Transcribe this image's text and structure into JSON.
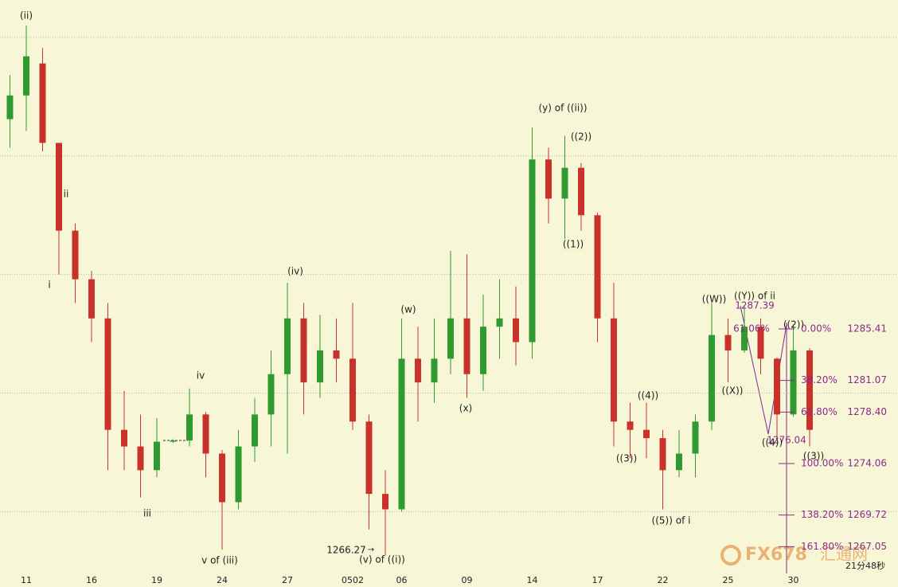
{
  "chart_data": {
    "type": "candlestick",
    "categories": [
      null,
      "11",
      null,
      null,
      null,
      "16",
      null,
      null,
      null,
      "19",
      null,
      null,
      null,
      "24",
      null,
      null,
      null,
      "27",
      null,
      null,
      null,
      "0502",
      null,
      null,
      "06",
      null,
      null,
      null,
      "09",
      null,
      null,
      null,
      "14",
      null,
      null,
      null,
      "17",
      null,
      null,
      null,
      "22",
      null,
      null,
      null,
      "25",
      null,
      null,
      null,
      "30",
      null
    ],
    "open": [
      1303.1,
      1305.1,
      1307.8,
      1301.1,
      1293.7,
      1289.6,
      1286.3,
      1276.9,
      1275.5,
      1273.5,
      1275.9,
      1276.0,
      1278.2,
      1274.9,
      1270.8,
      1275.5,
      1278.2,
      1281.6,
      1286.3,
      1280.9,
      1283.6,
      1282.9,
      1277.6,
      1271.5,
      1270.2,
      1282.9,
      1280.9,
      1282.9,
      1286.3,
      1281.6,
      1285.6,
      1286.3,
      1284.3,
      1299.7,
      1296.4,
      1299.0,
      1295.0,
      1286.3,
      1277.6,
      1276.9,
      1276.2,
      1273.5,
      1274.9,
      1277.6,
      1284.9,
      1283.6,
      1285.6,
      1282.9,
      1278.2,
      1283.6
    ],
    "high": [
      1306.8,
      1311.0,
      1309.1,
      1301.1,
      1294.3,
      1290.3,
      1287.6,
      1280.2,
      1278.2,
      1277.9,
      1276.1,
      1280.4,
      1278.4,
      1275.2,
      1276.9,
      1279.6,
      1283.6,
      1289.3,
      1287.6,
      1286.6,
      1286.3,
      1287.6,
      1278.2,
      1273.5,
      1286.3,
      1285.6,
      1286.3,
      1292.0,
      1291.7,
      1288.3,
      1289.6,
      1289.0,
      1302.4,
      1300.7,
      1301.7,
      1299.4,
      1295.2,
      1289.3,
      1279.2,
      1279.2,
      1276.9,
      1276.9,
      1278.2,
      1287.6,
      1286.3,
      1287.4,
      1286.3,
      1283.0,
      1285.8,
      1283.8
    ],
    "low": [
      1300.7,
      1302.1,
      1300.4,
      1290.0,
      1287.6,
      1284.3,
      1273.5,
      1273.5,
      1271.2,
      1272.9,
      1275.8,
      1275.5,
      1272.9,
      1266.8,
      1270.2,
      1274.2,
      1275.5,
      1274.9,
      1278.2,
      1279.6,
      1280.9,
      1276.9,
      1268.5,
      1266.3,
      1270.0,
      1277.6,
      1279.2,
      1281.6,
      1279.6,
      1280.2,
      1282.9,
      1282.3,
      1282.9,
      1294.3,
      1293.0,
      1293.7,
      1284.3,
      1275.5,
      1274.5,
      1274.5,
      1270.2,
      1272.9,
      1272.9,
      1276.9,
      1280.9,
      1283.4,
      1281.6,
      1276.0,
      1278.0,
      1275.5
    ],
    "close": [
      1305.1,
      1308.4,
      1301.1,
      1293.7,
      1289.6,
      1286.3,
      1276.9,
      1275.5,
      1273.5,
      1275.9,
      1276.0,
      1278.2,
      1274.9,
      1270.8,
      1275.5,
      1278.2,
      1281.6,
      1286.3,
      1280.9,
      1283.6,
      1282.9,
      1277.6,
      1271.5,
      1270.2,
      1282.9,
      1280.9,
      1282.9,
      1286.3,
      1281.6,
      1285.6,
      1286.3,
      1284.3,
      1299.7,
      1296.4,
      1299.0,
      1295.0,
      1286.3,
      1277.6,
      1276.9,
      1276.2,
      1273.5,
      1274.9,
      1277.6,
      1284.9,
      1283.6,
      1285.6,
      1282.9,
      1278.2,
      1283.6,
      1276.9
    ],
    "up_color": "#2f9a2f",
    "down_color": "#c8322a",
    "ylim": [
      1264.79,
      1313.15
    ],
    "yticks": [
      1270,
      1280,
      1290,
      1300,
      1310
    ],
    "grid": true,
    "annotations": [
      "(ii)",
      "ii",
      "i",
      "iv",
      "iii",
      "v of (iii)",
      "(iv)",
      "1266.27",
      "(v) of ((i))",
      "(w)",
      "(x)",
      "(y) of ((ii))",
      "((2))",
      "((1))",
      "((4))",
      "((3))",
      "((5)) of i",
      "((W))",
      "((X))",
      "((Y)) of ii",
      "1287.39",
      "61.06%",
      "((2))",
      "1276.04",
      "((4))",
      "((3))"
    ],
    "fib": [
      {
        "ratio": "0.00%",
        "price": {
          "value": 1285.41,
          "label": "1285.41"
        }
      },
      {
        "ratio": "38.20%",
        "price": {
          "value": 1281.07,
          "label": "1281.07"
        }
      },
      {
        "ratio": "61.80%",
        "price": {
          "value": 1278.4,
          "label": "1278.40"
        }
      },
      {
        "ratio": "100.00%",
        "price": {
          "value": 1274.06,
          "label": "1274.06"
        }
      },
      {
        "ratio": "138.20%",
        "price": {
          "value": 1269.72,
          "label": "1269.72"
        }
      },
      {
        "ratio": "161.80%",
        "price": {
          "value": 1267.05,
          "label": "1267.05"
        }
      }
    ]
  },
  "watermark": {
    "brand": "FX678",
    "cn": "汇通网"
  },
  "timer": "21分48秒"
}
